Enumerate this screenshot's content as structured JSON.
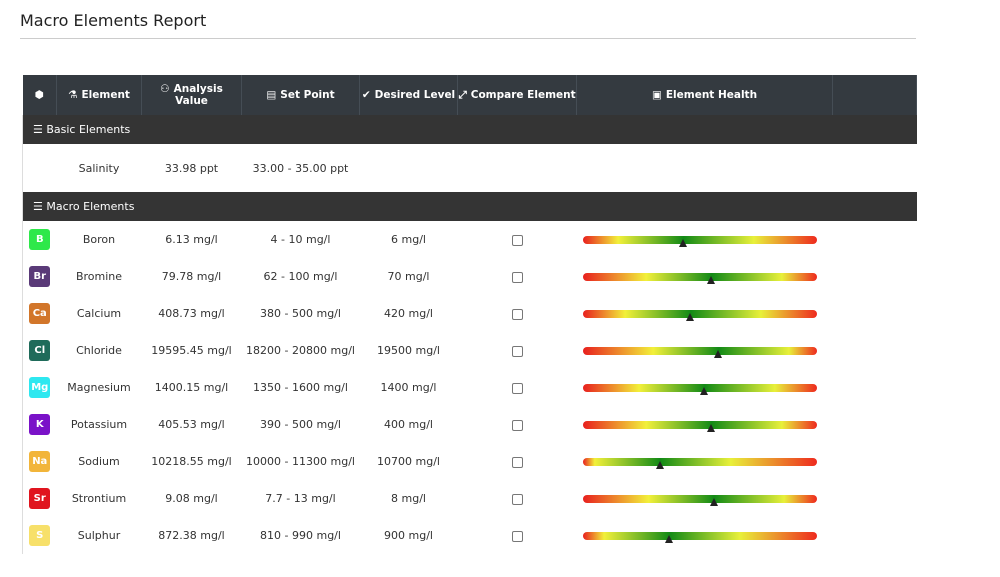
{
  "title": "Macro Elements Report",
  "headers": {
    "settings_icon": "gear-icon",
    "element": "Element",
    "analysis": "Analysis Value",
    "setpoint": "Set Point",
    "desired": "Desired Level",
    "compare": "Compare Element",
    "health": "Element Health"
  },
  "sections": {
    "basic": "Basic Elements",
    "macro": "Macro Elements"
  },
  "basic_rows": [
    {
      "element": "Salinity",
      "analysis": "33.98 ppt",
      "setpoint": "33.00 - 35.00 ppt"
    }
  ],
  "macro_rows": [
    {
      "symbol": "B",
      "color": "#2ee84a",
      "element": "Boron",
      "analysis": "6.13 mg/l",
      "setpoint": "4 - 10 mg/l",
      "desired": "6 mg/l",
      "health": 0.43
    },
    {
      "symbol": "Br",
      "color": "#5a3a78",
      "element": "Bromine",
      "analysis": "79.78 mg/l",
      "setpoint": "62 - 100 mg/l",
      "desired": "70 mg/l",
      "health": 0.55
    },
    {
      "symbol": "Ca",
      "color": "#d2762a",
      "element": "Calcium",
      "analysis": "408.73 mg/l",
      "setpoint": "380 - 500 mg/l",
      "desired": "420 mg/l",
      "health": 0.46
    },
    {
      "symbol": "Cl",
      "color": "#1f6b5a",
      "element": "Chloride",
      "analysis": "19595.45 mg/l",
      "setpoint": "18200 - 20800 mg/l",
      "desired": "19500 mg/l",
      "health": 0.58
    },
    {
      "symbol": "Mg",
      "color": "#2ee8f0",
      "element": "Magnesium",
      "analysis": "1400.15 mg/l",
      "setpoint": "1350 - 1600 mg/l",
      "desired": "1400 mg/l",
      "health": 0.52
    },
    {
      "symbol": "K",
      "color": "#7a12c8",
      "element": "Potassium",
      "analysis": "405.53 mg/l",
      "setpoint": "390 - 500 mg/l",
      "desired": "400 mg/l",
      "health": 0.55
    },
    {
      "symbol": "Na",
      "color": "#f2b53a",
      "element": "Sodium",
      "analysis": "10218.55 mg/l",
      "setpoint": "10000 - 11300 mg/l",
      "desired": "10700 mg/l",
      "health": 0.33
    },
    {
      "symbol": "Sr",
      "color": "#e0141e",
      "element": "Strontium",
      "analysis": "9.08 mg/l",
      "setpoint": "7.7 - 13 mg/l",
      "desired": "8 mg/l",
      "health": 0.56
    },
    {
      "symbol": "S",
      "color": "#f7e06a",
      "element": "Sulphur",
      "analysis": "872.38 mg/l",
      "setpoint": "810 - 990 mg/l",
      "desired": "900 mg/l",
      "health": 0.37
    }
  ]
}
